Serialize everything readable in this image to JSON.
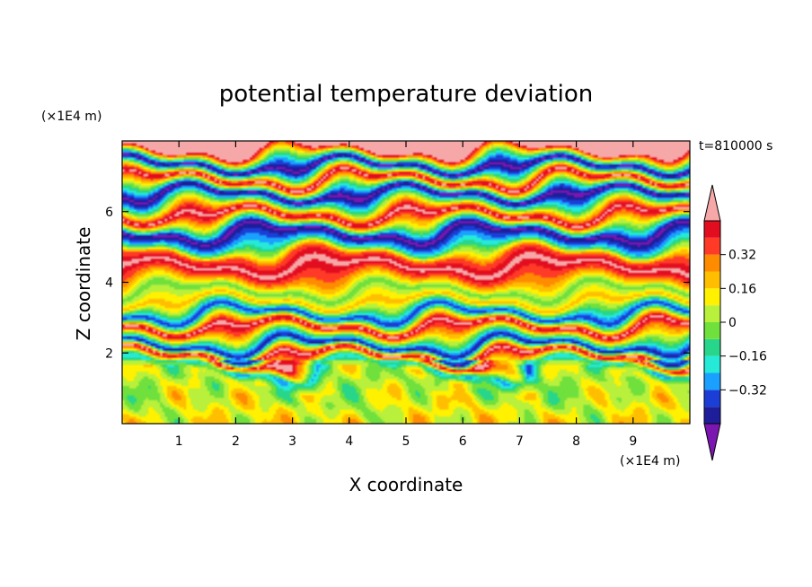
{
  "chart_data": {
    "type": "heatmap",
    "title": "potential temperature deviation",
    "time_label": "t=810000 s",
    "xlabel": "X coordinate",
    "ylabel": "Z coordinate",
    "x_unit": "(×1E4 m)",
    "y_unit": "(×1E4 m)",
    "xlim": [
      0,
      10
    ],
    "ylim": [
      0,
      8
    ],
    "x_ticks": [
      1,
      2,
      3,
      4,
      5,
      6,
      7,
      8,
      9
    ],
    "y_ticks": [
      2,
      4,
      6
    ],
    "colorbar": {
      "levels": [
        -0.48,
        -0.4,
        -0.32,
        -0.24,
        -0.16,
        -0.08,
        0,
        0.08,
        0.16,
        0.24,
        0.32,
        0.4,
        0.48
      ],
      "tick_labels": [
        "0.32",
        "0.16",
        "0",
        "−0.16",
        "−0.32"
      ],
      "tick_values": [
        0.32,
        0.16,
        0,
        -0.16,
        -0.32
      ],
      "colors": [
        "#7b17b0",
        "#1e1e9b",
        "#1b3fd6",
        "#1aa0ff",
        "#25ead8",
        "#27d68a",
        "#70e03c",
        "#b8f03c",
        "#fff100",
        "#ffbf00",
        "#ff8c00",
        "#ff3a26",
        "#e30d20",
        "#f6a8a8"
      ],
      "extend": "both"
    },
    "layers": [
      {
        "z": 7.75,
        "value": 0.52
      },
      {
        "z": 7.3,
        "value": -0.52
      },
      {
        "z": 6.9,
        "value": 0.52
      },
      {
        "z": 6.5,
        "value": -0.52
      },
      {
        "z": 5.9,
        "value": 0.52
      },
      {
        "z": 5.4,
        "value": -0.52
      },
      {
        "z": 5.05,
        "value": -0.2
      },
      {
        "z": 4.75,
        "value": 0.34
      },
      {
        "z": 4.45,
        "value": 0.52
      },
      {
        "z": 4.1,
        "value": 0.28
      },
      {
        "z": 3.75,
        "value": -0.05
      },
      {
        "z": 3.45,
        "value": 0.2
      },
      {
        "z": 3.1,
        "value": -0.4
      },
      {
        "z": 2.75,
        "value": 0.52
      },
      {
        "z": 2.45,
        "value": -0.02
      },
      {
        "z": 2.2,
        "value": -0.45
      },
      {
        "z": 1.95,
        "value": 0.52
      },
      {
        "z": 1.65,
        "value": -0.22
      },
      {
        "z": 1.25,
        "value": 0.05
      },
      {
        "z": 0.85,
        "value": 0.02
      },
      {
        "z": 0.45,
        "value": 0.1
      },
      {
        "z": 0.05,
        "value": 0.12
      }
    ]
  }
}
